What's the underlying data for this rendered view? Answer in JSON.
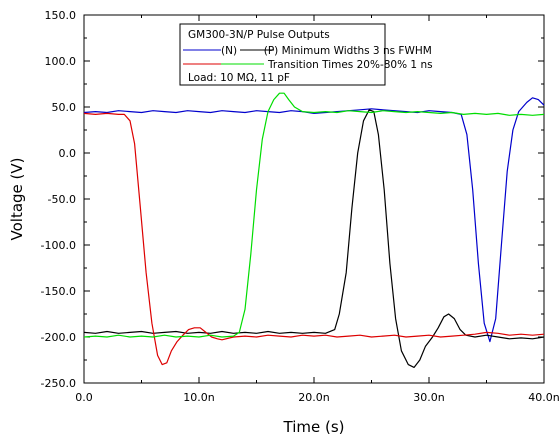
{
  "chart_data": {
    "type": "line",
    "xlabel": "Time (s)",
    "ylabel": "Voltage (V)",
    "xlim": [
      0,
      40
    ],
    "ylim": [
      -250,
      150
    ],
    "x_ticks": [
      {
        "v": 0,
        "label": "0.0"
      },
      {
        "v": 10,
        "label": "10.0n"
      },
      {
        "v": 20,
        "label": "20.0n"
      },
      {
        "v": 30,
        "label": "30.0n"
      },
      {
        "v": 40,
        "label": "40.0n"
      }
    ],
    "y_ticks": [
      {
        "v": 150,
        "label": "150.0"
      },
      {
        "v": 100,
        "label": "100.0"
      },
      {
        "v": 50,
        "label": "50.0"
      },
      {
        "v": 0,
        "label": "0.0"
      },
      {
        "v": -50,
        "label": "-50.0"
      },
      {
        "v": -100,
        "label": "-100.0"
      },
      {
        "v": -150,
        "label": "-150.0"
      },
      {
        "v": -200,
        "label": "-200.0"
      },
      {
        "v": -250,
        "label": "-250.0"
      }
    ],
    "grid": false,
    "legend": {
      "title": "GM300-3N/P Pulse Outputs",
      "line1_text": "(N)        (P) Minimum Widths 3 ns FWHM",
      "line2_text": "Transition Times 20%-80% 1 ns",
      "load_text": "Load: 10 MΩ, 11 pF",
      "placement": "top-center"
    },
    "series": [
      {
        "color": "#0000cc",
        "points": [
          [
            0,
            44
          ],
          [
            1,
            45
          ],
          [
            2,
            44
          ],
          [
            3,
            46
          ],
          [
            4,
            45
          ],
          [
            5,
            44
          ],
          [
            6,
            46
          ],
          [
            7,
            45
          ],
          [
            8,
            44
          ],
          [
            9,
            46
          ],
          [
            10,
            45
          ],
          [
            11,
            44
          ],
          [
            12,
            46
          ],
          [
            13,
            45
          ],
          [
            14,
            44
          ],
          [
            15,
            46
          ],
          [
            16,
            45
          ],
          [
            17,
            44
          ],
          [
            18,
            46
          ],
          [
            19,
            45
          ],
          [
            20,
            43
          ],
          [
            21,
            44
          ],
          [
            22,
            45
          ],
          [
            23,
            46
          ],
          [
            24,
            47
          ],
          [
            25,
            48
          ],
          [
            26,
            47
          ],
          [
            27,
            46
          ],
          [
            28,
            45
          ],
          [
            29,
            44
          ],
          [
            30,
            46
          ],
          [
            31,
            45
          ],
          [
            32,
            44
          ],
          [
            32.8,
            42
          ],
          [
            33.3,
            20
          ],
          [
            33.8,
            -40
          ],
          [
            34.3,
            -120
          ],
          [
            34.8,
            -185
          ],
          [
            35.3,
            -205
          ],
          [
            35.8,
            -180
          ],
          [
            36.3,
            -100
          ],
          [
            36.8,
            -20
          ],
          [
            37.3,
            25
          ],
          [
            37.8,
            45
          ],
          [
            38.5,
            55
          ],
          [
            39,
            60
          ],
          [
            39.5,
            58
          ],
          [
            40,
            52
          ]
        ]
      },
      {
        "color": "#000000",
        "points": [
          [
            0,
            -195
          ],
          [
            1,
            -196
          ],
          [
            2,
            -194
          ],
          [
            3,
            -196
          ],
          [
            4,
            -195
          ],
          [
            5,
            -194
          ],
          [
            6,
            -196
          ],
          [
            7,
            -195
          ],
          [
            8,
            -194
          ],
          [
            9,
            -196
          ],
          [
            10,
            -195
          ],
          [
            11,
            -196
          ],
          [
            12,
            -194
          ],
          [
            13,
            -196
          ],
          [
            14,
            -195
          ],
          [
            15,
            -196
          ],
          [
            16,
            -194
          ],
          [
            17,
            -196
          ],
          [
            18,
            -195
          ],
          [
            19,
            -196
          ],
          [
            20,
            -195
          ],
          [
            21,
            -196
          ],
          [
            21.8,
            -192
          ],
          [
            22.2,
            -175
          ],
          [
            22.8,
            -130
          ],
          [
            23.3,
            -60
          ],
          [
            23.8,
            0
          ],
          [
            24.3,
            35
          ],
          [
            24.8,
            47
          ],
          [
            25.2,
            45
          ],
          [
            25.6,
            20
          ],
          [
            26.1,
            -40
          ],
          [
            26.6,
            -120
          ],
          [
            27.1,
            -180
          ],
          [
            27.6,
            -215
          ],
          [
            28.2,
            -230
          ],
          [
            28.7,
            -233
          ],
          [
            29.2,
            -225
          ],
          [
            29.7,
            -210
          ],
          [
            30.3,
            -200
          ],
          [
            30.8,
            -190
          ],
          [
            31.3,
            -178
          ],
          [
            31.7,
            -175
          ],
          [
            32.2,
            -180
          ],
          [
            32.7,
            -192
          ],
          [
            33.2,
            -198
          ],
          [
            34,
            -200
          ],
          [
            35,
            -198
          ],
          [
            36,
            -200
          ],
          [
            37,
            -202
          ],
          [
            38,
            -201
          ],
          [
            39,
            -202
          ],
          [
            40,
            -200
          ]
        ]
      },
      {
        "color": "#dd0000",
        "points": [
          [
            0,
            43
          ],
          [
            1,
            42
          ],
          [
            2,
            43
          ],
          [
            3,
            42
          ],
          [
            3.5,
            42
          ],
          [
            4,
            35
          ],
          [
            4.4,
            10
          ],
          [
            4.9,
            -60
          ],
          [
            5.4,
            -130
          ],
          [
            5.9,
            -185
          ],
          [
            6.4,
            -220
          ],
          [
            6.8,
            -230
          ],
          [
            7.2,
            -228
          ],
          [
            7.6,
            -215
          ],
          [
            8.1,
            -205
          ],
          [
            8.6,
            -198
          ],
          [
            9.1,
            -192
          ],
          [
            9.6,
            -190
          ],
          [
            10.1,
            -190
          ],
          [
            10.6,
            -195
          ],
          [
            11.1,
            -200
          ],
          [
            11.6,
            -202
          ],
          [
            12,
            -203
          ],
          [
            13,
            -200
          ],
          [
            14,
            -199
          ],
          [
            15,
            -200
          ],
          [
            16,
            -198
          ],
          [
            17,
            -199
          ],
          [
            18,
            -200
          ],
          [
            19,
            -198
          ],
          [
            20,
            -199
          ],
          [
            21,
            -198
          ],
          [
            22,
            -200
          ],
          [
            23,
            -199
          ],
          [
            24,
            -198
          ],
          [
            25,
            -200
          ],
          [
            26,
            -199
          ],
          [
            27,
            -198
          ],
          [
            28,
            -200
          ],
          [
            29,
            -199
          ],
          [
            30,
            -198
          ],
          [
            31,
            -200
          ],
          [
            32,
            -199
          ],
          [
            33,
            -198
          ],
          [
            34,
            -197
          ],
          [
            35,
            -195
          ],
          [
            36,
            -196
          ],
          [
            37,
            -198
          ],
          [
            38,
            -197
          ],
          [
            39,
            -198
          ],
          [
            40,
            -197
          ]
        ]
      },
      {
        "color": "#00dd00",
        "points": [
          [
            0,
            -200
          ],
          [
            1,
            -199
          ],
          [
            2,
            -200
          ],
          [
            3,
            -198
          ],
          [
            4,
            -200
          ],
          [
            5,
            -199
          ],
          [
            6,
            -200
          ],
          [
            7,
            -198
          ],
          [
            8,
            -200
          ],
          [
            9,
            -199
          ],
          [
            10,
            -200
          ],
          [
            11,
            -198
          ],
          [
            12,
            -200
          ],
          [
            13,
            -199
          ],
          [
            13.5,
            -195
          ],
          [
            14,
            -170
          ],
          [
            14.5,
            -110
          ],
          [
            15,
            -40
          ],
          [
            15.5,
            15
          ],
          [
            16,
            45
          ],
          [
            16.5,
            58
          ],
          [
            17,
            65
          ],
          [
            17.4,
            65
          ],
          [
            17.8,
            58
          ],
          [
            18.3,
            50
          ],
          [
            19,
            45
          ],
          [
            20,
            44
          ],
          [
            21,
            45
          ],
          [
            22,
            44
          ],
          [
            23,
            46
          ],
          [
            24,
            45
          ],
          [
            25,
            44
          ],
          [
            26,
            46
          ],
          [
            27,
            45
          ],
          [
            28,
            44
          ],
          [
            29,
            45
          ],
          [
            30,
            44
          ],
          [
            31,
            43
          ],
          [
            32,
            44
          ],
          [
            33,
            42
          ],
          [
            34,
            43
          ],
          [
            35,
            42
          ],
          [
            36,
            43
          ],
          [
            37,
            41
          ],
          [
            38,
            42
          ],
          [
            39,
            41
          ],
          [
            40,
            42
          ]
        ]
      }
    ]
  }
}
